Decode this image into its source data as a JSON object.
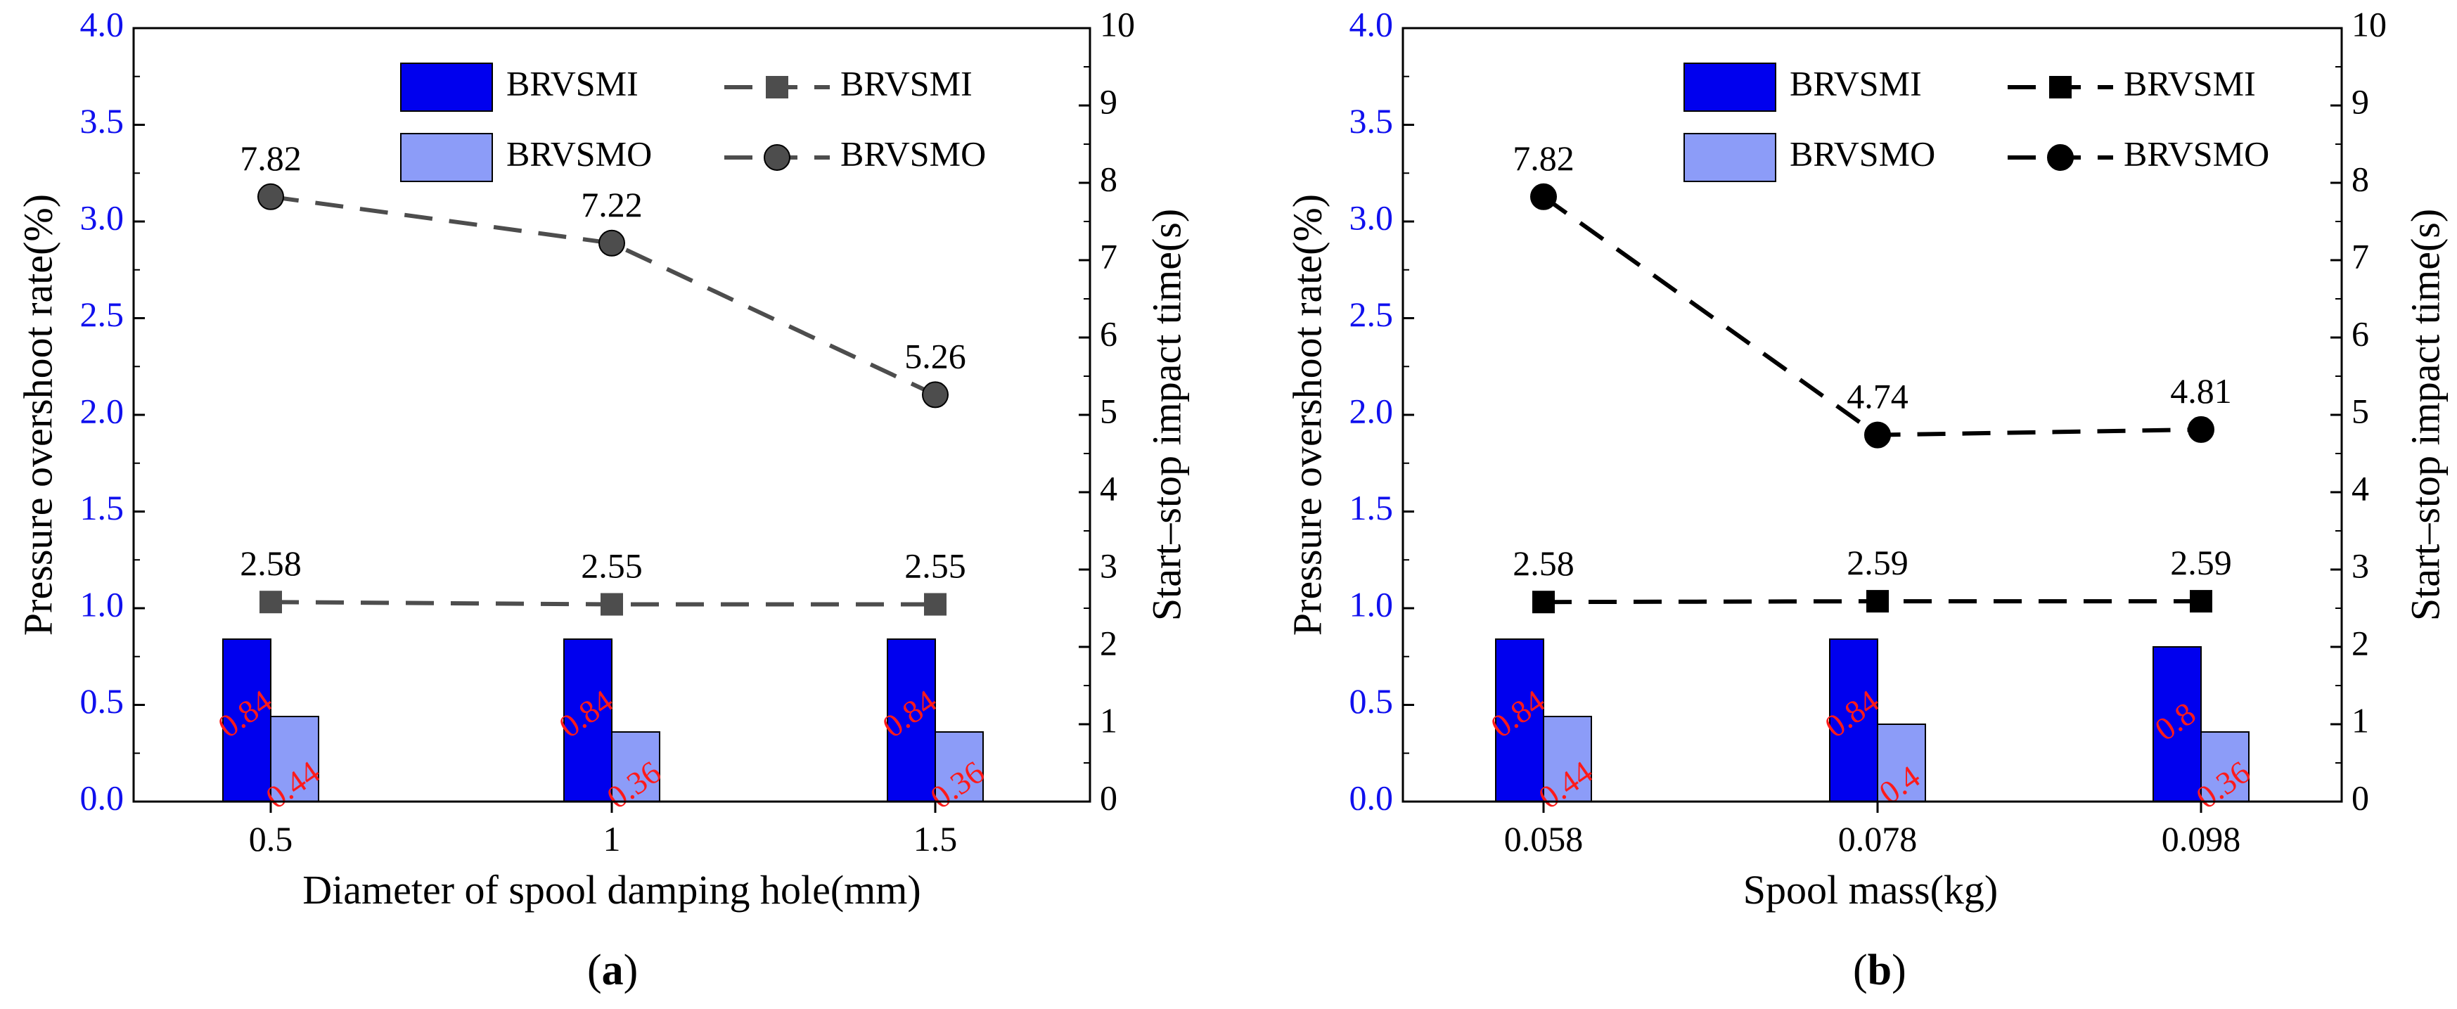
{
  "chart_data": [
    {
      "type": "bar+line",
      "panel_label": "(a)",
      "categories": [
        "0.5",
        "1",
        "1.5"
      ],
      "xlabel": "Diameter of spool damping hole(mm)",
      "ylabel": "Pressure overshoot rate(%)",
      "y2label": "Start–stop impact time(s)",
      "ylim": [
        0,
        4.0
      ],
      "y2lim": [
        0,
        10
      ],
      "yticks": [
        "0.0",
        "0.5",
        "1.0",
        "1.5",
        "2.0",
        "2.5",
        "3.0",
        "3.5",
        "4.0"
      ],
      "y2ticks": [
        "0",
        "1",
        "2",
        "3",
        "4",
        "5",
        "6",
        "7",
        "8",
        "9",
        "10"
      ],
      "line_color": "#4d4d4d",
      "bar_series": [
        {
          "name": "BRVSMI",
          "values": [
            0.84,
            0.84,
            0.84
          ],
          "labels": [
            "0.84",
            "0.84",
            "0.84"
          ],
          "color": "#0000ee"
        },
        {
          "name": "BRVSMO",
          "values": [
            0.44,
            0.36,
            0.36
          ],
          "labels": [
            "0.44",
            "0.36",
            "0.36"
          ],
          "color": "#8c9cf8"
        }
      ],
      "line_series": [
        {
          "name": "BRVSMI",
          "marker": "square",
          "values": [
            2.58,
            2.55,
            2.55
          ],
          "labels": [
            "2.58",
            "2.55",
            "2.55"
          ]
        },
        {
          "name": "BRVSMO",
          "marker": "circle",
          "values": [
            7.82,
            7.22,
            5.26
          ],
          "labels": [
            "7.82",
            "7.22",
            "5.26"
          ]
        }
      ],
      "legend": {
        "bars": [
          "BRVSMI",
          "BRVSMO"
        ],
        "lines": [
          "BRVSMI",
          "BRVSMO"
        ],
        "placement": "top-right"
      }
    },
    {
      "type": "bar+line",
      "panel_label": "(b)",
      "categories": [
        "0.058",
        "0.078",
        "0.098"
      ],
      "xlabel": "Spool mass(kg)",
      "ylabel": "Pressure overshoot rate(%)",
      "y2label": "Start–stop impact time(s)",
      "ylim": [
        0,
        4.0
      ],
      "y2lim": [
        0,
        10
      ],
      "yticks": [
        "0.0",
        "0.5",
        "1.0",
        "1.5",
        "2.0",
        "2.5",
        "3.0",
        "3.5",
        "4.0"
      ],
      "y2ticks": [
        "0",
        "1",
        "2",
        "3",
        "4",
        "5",
        "6",
        "7",
        "8",
        "9",
        "10"
      ],
      "line_color": "#000000",
      "bar_series": [
        {
          "name": "BRVSMI",
          "values": [
            0.84,
            0.84,
            0.8
          ],
          "labels": [
            "0.84",
            "0.84",
            "0.8"
          ],
          "color": "#0000ee"
        },
        {
          "name": "BRVSMO",
          "values": [
            0.44,
            0.4,
            0.36
          ],
          "labels": [
            "0.44",
            "0.4",
            "0.36"
          ],
          "color": "#8c9cf8"
        }
      ],
      "line_series": [
        {
          "name": "BRVSMI",
          "marker": "square",
          "values": [
            2.58,
            2.59,
            2.59
          ],
          "labels": [
            "2.58",
            "2.59",
            "2.59"
          ]
        },
        {
          "name": "BRVSMO",
          "marker": "circle",
          "values": [
            7.82,
            4.74,
            4.81
          ],
          "labels": [
            "7.82",
            "4.74",
            "4.81"
          ]
        }
      ],
      "legend": {
        "bars": [
          "BRVSMI",
          "BRVSMO"
        ],
        "lines": [
          "BRVSMI",
          "BRVSMO"
        ],
        "placement": "top-right"
      }
    }
  ],
  "colors": {
    "left_axis": "#1010ee",
    "bar_label": "#ff1a1a",
    "axis": "#000000"
  }
}
